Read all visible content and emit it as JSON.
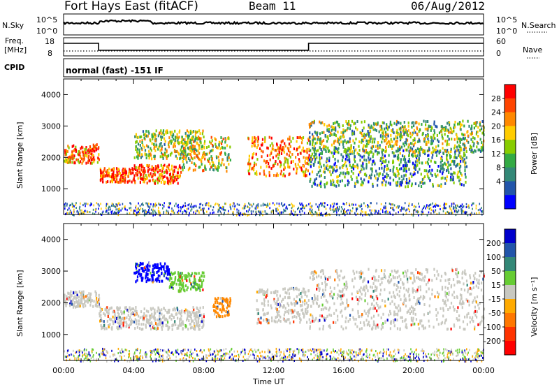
{
  "header": {
    "station": "Fort Hays East (fitACF)",
    "beam": "Beam 11",
    "date": "06/Aug/2012"
  },
  "panels": {
    "nsky": {
      "label": "N.Sky",
      "ticks": [
        "10^5",
        "10^0"
      ]
    },
    "nsearch": {
      "label": "N.Search",
      "ticks": [
        "10^5",
        "10^0"
      ]
    },
    "freq": {
      "label_1": "Freq.",
      "label_2": "[MHz]",
      "ticks": [
        "18",
        "8"
      ]
    },
    "nave": {
      "label": "Nave",
      "ticks": [
        "60",
        "0"
      ]
    },
    "cpid": {
      "label": "CPID",
      "program": "normal (fast) -151 IF"
    }
  },
  "chart_data": [
    {
      "type": "heatmap",
      "panel": "power",
      "title": "",
      "ylabel": "Slant Range [km]",
      "xlabel": "Time UT",
      "xlim": [
        "00:00",
        "24:00"
      ],
      "ylim": [
        180,
        4500
      ],
      "x_tick_labels": [
        "00:00",
        "04:00",
        "08:00",
        "12:00",
        "16:00",
        "20:00",
        "00:00"
      ],
      "y_ticks": [
        1000,
        2000,
        3000,
        4000
      ],
      "colorbar": {
        "label": "Power [dB]",
        "ticks": [
          "28",
          "24",
          "20",
          "16",
          "12",
          "8",
          "4"
        ],
        "colors": [
          "#ff0000",
          "#ff4400",
          "#ff8800",
          "#ffcc00",
          "#88cc00",
          "#33aa44",
          "#338877",
          "#2255aa",
          "#0000ff"
        ]
      },
      "bands": [
        {
          "t": [
            0,
            2
          ],
          "r": [
            1850,
            2450
          ],
          "level": 0.75
        },
        {
          "t": [
            2,
            4
          ],
          "r": [
            1250,
            1700
          ],
          "level": 0.85
        },
        {
          "t": [
            4,
            6.7
          ],
          "r": [
            1200,
            1800
          ],
          "level": 0.8
        },
        {
          "t": [
            4,
            8
          ],
          "r": [
            2000,
            2900
          ],
          "level": 0.5
        },
        {
          "t": [
            6.7,
            9.5
          ],
          "r": [
            1600,
            2700
          ],
          "level": 0.55
        },
        {
          "t": [
            10.5,
            14
          ],
          "r": [
            1450,
            2700
          ],
          "level": 0.75
        },
        {
          "t": [
            14,
            23
          ],
          "r": [
            1100,
            2300
          ],
          "level": 0.35
        },
        {
          "t": [
            14,
            24
          ],
          "r": [
            2200,
            3200
          ],
          "level": 0.45
        }
      ]
    },
    {
      "type": "heatmap",
      "panel": "velocity",
      "title": "",
      "ylabel": "Slant Range [km]",
      "xlabel": "Time UT",
      "xlim": [
        "00:00",
        "24:00"
      ],
      "ylim": [
        180,
        4500
      ],
      "x_tick_labels": [
        "00:00",
        "04:00",
        "08:00",
        "12:00",
        "16:00",
        "20:00",
        "00:00"
      ],
      "y_ticks": [
        1000,
        2000,
        3000,
        4000
      ],
      "colorbar": {
        "label": "Velocity [m s⁻¹]",
        "ticks": [
          "200",
          "100",
          "50",
          "15",
          "-15",
          "-50",
          "-100",
          "-200"
        ],
        "colors": [
          "#0000cc",
          "#2255aa",
          "#338877",
          "#66cc33",
          "#c8c8c0",
          "#ffaa00",
          "#ff7700",
          "#ff3300",
          "#ff0000"
        ]
      },
      "bands": [
        {
          "t": [
            0,
            2
          ],
          "r": [
            1900,
            2400
          ],
          "color": "#c8c8c0"
        },
        {
          "t": [
            2,
            8
          ],
          "r": [
            1200,
            1900
          ],
          "color": "#c8c8c0"
        },
        {
          "t": [
            4,
            6
          ],
          "r": [
            2700,
            3300
          ],
          "color": "#0000ff"
        },
        {
          "t": [
            6,
            8
          ],
          "r": [
            2400,
            3000
          ],
          "color": "#66cc33"
        },
        {
          "t": [
            8.5,
            9.5
          ],
          "r": [
            1600,
            2200
          ],
          "color": "#ff8800"
        },
        {
          "t": [
            11,
            14
          ],
          "r": [
            1400,
            2500
          ],
          "color": "#c8c8c0"
        },
        {
          "t": [
            14,
            24
          ],
          "r": [
            1200,
            3100
          ],
          "color": "#c8c8c0"
        }
      ]
    }
  ]
}
